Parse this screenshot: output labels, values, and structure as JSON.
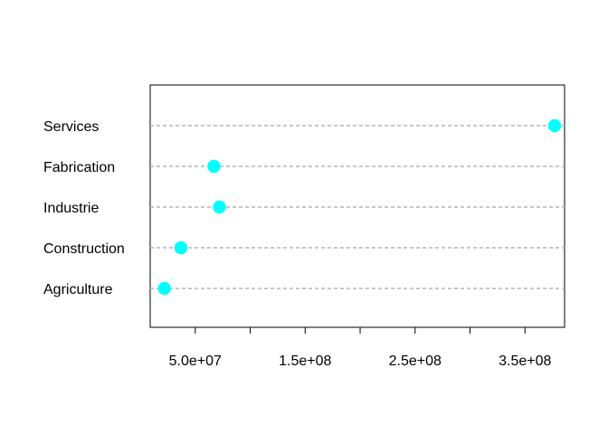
{
  "chart_data": {
    "type": "scatter",
    "title": "",
    "xlabel": "",
    "ylabel": "",
    "categories": [
      "Agriculture",
      "Construction",
      "Industrie",
      "Fabrication",
      "Services"
    ],
    "values": [
      22000000,
      37000000,
      72000000,
      67000000,
      377000000
    ],
    "xlim": [
      9000000,
      386000000
    ],
    "x_ticks": [
      {
        "value": 50000000,
        "label": "5.0e+07"
      },
      {
        "value": 100000000,
        "label": ""
      },
      {
        "value": 150000000,
        "label": "1.5e+08"
      },
      {
        "value": 200000000,
        "label": ""
      },
      {
        "value": 250000000,
        "label": "2.5e+08"
      },
      {
        "value": 300000000,
        "label": ""
      },
      {
        "value": 350000000,
        "label": "3.5e+08"
      }
    ],
    "point_color": "#00FFFF",
    "guide_color": "#B3B3B3",
    "grid": false,
    "legend": "none"
  }
}
